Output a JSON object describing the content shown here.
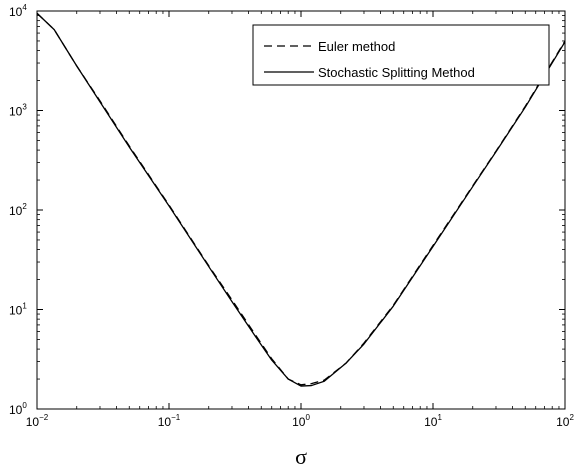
{
  "chart_data": {
    "type": "line",
    "title": "",
    "xlabel": "σ",
    "ylabel": "",
    "xscale": "log",
    "yscale": "log",
    "xlim": [
      0.01,
      100
    ],
    "ylim": [
      1,
      10000
    ],
    "grid": false,
    "legend_position": "top-right",
    "x_ticks": [
      {
        "value": 0.01,
        "base": "10",
        "exp": "−2"
      },
      {
        "value": 0.1,
        "base": "10",
        "exp": "−1"
      },
      {
        "value": 1,
        "base": "10",
        "exp": "0"
      },
      {
        "value": 10,
        "base": "10",
        "exp": "1"
      },
      {
        "value": 100,
        "base": "10",
        "exp": "2"
      }
    ],
    "y_ticks": [
      {
        "value": 1,
        "base": "10",
        "exp": "0"
      },
      {
        "value": 10,
        "base": "10",
        "exp": "1"
      },
      {
        "value": 100,
        "base": "10",
        "exp": "2"
      },
      {
        "value": 1000,
        "base": "10",
        "exp": "3"
      },
      {
        "value": 10000,
        "base": "10",
        "exp": "4"
      }
    ],
    "series": [
      {
        "name": "Euler method",
        "style": "dashed",
        "color": "#000000",
        "x": [
          0.01,
          0.0135,
          0.02,
          0.03,
          0.05,
          0.1,
          0.2,
          0.3,
          0.45,
          0.6,
          0.8,
          1.0,
          1.2,
          1.5,
          2.2,
          3,
          5,
          10,
          20,
          30,
          50,
          100
        ],
        "y": [
          9500,
          6500,
          2800,
          1250,
          440,
          112,
          27.5,
          12.5,
          5.6,
          3.2,
          2.0,
          1.75,
          1.8,
          1.95,
          2.9,
          4.6,
          11,
          44,
          175,
          390,
          1100,
          5000
        ]
      },
      {
        "name": "Stochastic Splitting Method",
        "style": "solid",
        "color": "#000000",
        "x": [
          0.01,
          0.0135,
          0.02,
          0.03,
          0.05,
          0.1,
          0.2,
          0.3,
          0.45,
          0.6,
          0.8,
          1.0,
          1.2,
          1.5,
          2.2,
          3,
          5,
          10,
          20,
          30,
          50,
          100
        ],
        "y": [
          9500,
          6500,
          2800,
          1220,
          430,
          110,
          27,
          12,
          5.4,
          3.1,
          2.0,
          1.7,
          1.72,
          1.9,
          2.9,
          4.5,
          10.8,
          43,
          172,
          385,
          1080,
          4900
        ]
      }
    ]
  }
}
